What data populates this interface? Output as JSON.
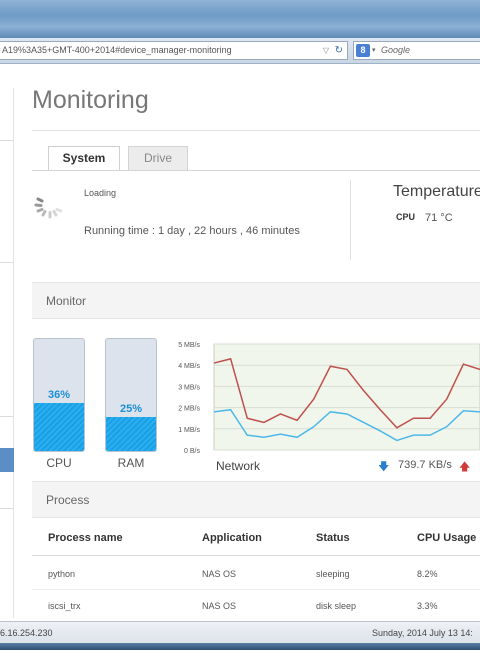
{
  "browser": {
    "url": "A19%3A35+GMT-400+2014#device_manager-monitoring",
    "url_dropdown": "▽",
    "reload_icon": "reload-icon",
    "search_engine_badge": "8",
    "search_dropdown": "▾",
    "search_placeholder": "Google"
  },
  "page": {
    "title": "Monitoring",
    "tabs": [
      {
        "label": "System",
        "active": true
      },
      {
        "label": "Drive",
        "active": false
      }
    ]
  },
  "system": {
    "loading_text": "Loading",
    "running_time": "Running time : 1 day , 22 hours , 46 minutes"
  },
  "temperature": {
    "title": "Temperature",
    "cpu_label": "CPU",
    "cpu_value": "71 °C"
  },
  "monitor": {
    "title": "Monitor",
    "cpu": {
      "label": "CPU",
      "percent_text": "36%",
      "percent": 36
    },
    "ram": {
      "label": "RAM",
      "percent_text": "25%",
      "percent": 25
    },
    "colors": {
      "gauge_fill": "#1c9ee4",
      "upload_line": "#c0504d",
      "download_line": "#4db8e8"
    }
  },
  "chart_data": {
    "type": "line",
    "title": "",
    "xlabel": "Network",
    "ylabel": "",
    "yticks": [
      "0 B/s",
      "1 MB/s",
      "2 MB/s",
      "3 MB/s",
      "4 MB/s",
      "5 MB/s"
    ],
    "ylim": [
      0,
      5
    ],
    "x": [
      0,
      1,
      2,
      3,
      4,
      5,
      6,
      7,
      8,
      9,
      10,
      11,
      12,
      13,
      14,
      15,
      16
    ],
    "series": [
      {
        "name": "",
        "color": "#c0504d",
        "values": [
          4.1,
          4.3,
          1.5,
          1.3,
          1.7,
          1.4,
          2.4,
          3.95,
          3.8,
          2.8,
          1.9,
          1.05,
          1.5,
          1.5,
          2.4,
          4.05,
          3.8
        ]
      },
      {
        "name": "",
        "color": "#4db8e8",
        "values": [
          1.8,
          1.9,
          0.7,
          0.6,
          0.75,
          0.6,
          1.1,
          1.8,
          1.7,
          1.3,
          0.9,
          0.45,
          0.7,
          0.7,
          1.1,
          1.85,
          1.8
        ]
      }
    ],
    "grid": true,
    "download_rate": "739.7 KB/s"
  },
  "process": {
    "title": "Process",
    "columns": [
      "Process name",
      "Application",
      "Status",
      "CPU Usage"
    ],
    "rows": [
      [
        "python",
        "NAS OS",
        "sleeping",
        "8.2%"
      ],
      [
        "iscsi_trx",
        "NAS OS",
        "disk sleep",
        "3.3%"
      ]
    ]
  },
  "status": {
    "ip": "6.16.254.230",
    "datetime": "Sunday, 2014 July 13  14:"
  }
}
